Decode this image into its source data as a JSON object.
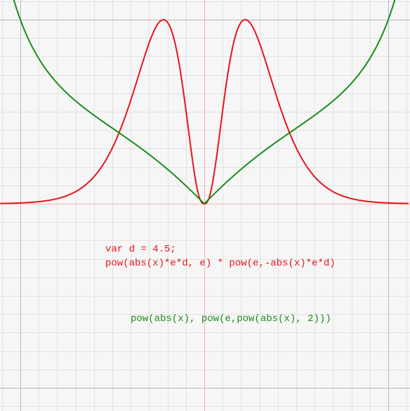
{
  "chart_data": {
    "type": "line",
    "title": "",
    "xlabel": "",
    "ylabel": "",
    "grid": true,
    "xlim": [
      -1.11,
      1.11
    ],
    "ylim": [
      -1.11,
      1.11
    ],
    "series": [
      {
        "formula_lines": [
          "var d = 4.5;",
          "pow(abs(x)*e*d, e) * pow(e,-abs(x)*e*d)"
        ],
        "color": "#e8141a",
        "d": 4.5
      },
      {
        "formula_lines": [
          "pow(abs(x), pow(e,pow(abs(x), 2)))"
        ],
        "color": "#1a8c1a"
      }
    ]
  }
}
